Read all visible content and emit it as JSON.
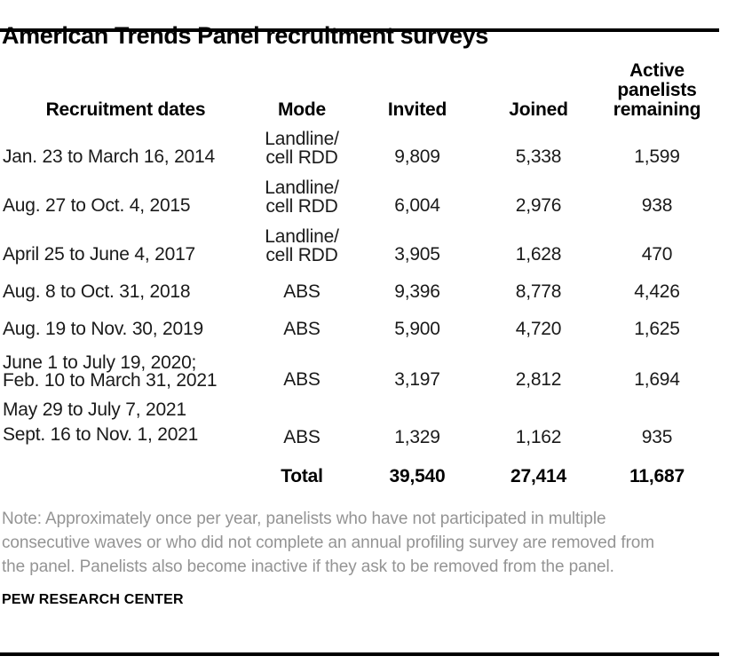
{
  "title": "American Trends Panel recruitment surveys",
  "table": {
    "columns": [
      {
        "id": "recruitment-dates",
        "lines": [
          "Recruitment dates"
        ]
      },
      {
        "id": "mode",
        "lines": [
          "Mode"
        ]
      },
      {
        "id": "invited",
        "lines": [
          "Invited"
        ]
      },
      {
        "id": "joined",
        "lines": [
          "Joined"
        ]
      },
      {
        "id": "active-panelists-remaining",
        "lines": [
          "Active",
          "panelists",
          "remaining"
        ]
      }
    ],
    "rows": [
      {
        "date_lines": [
          "Jan. 23 to March 16, 2014"
        ],
        "compact_dates": false,
        "mode_lines": [
          "Landline/",
          "cell RDD"
        ],
        "invited": "9,809",
        "joined": "5,338",
        "active_remaining": "1,599"
      },
      {
        "date_lines": [
          "Aug. 27 to Oct. 4, 2015"
        ],
        "compact_dates": false,
        "mode_lines": [
          "Landline/",
          "cell RDD"
        ],
        "invited": "6,004",
        "joined": "2,976",
        "active_remaining": "938"
      },
      {
        "date_lines": [
          "April 25 to June 4, 2017"
        ],
        "compact_dates": false,
        "mode_lines": [
          "Landline/",
          "cell RDD"
        ],
        "invited": "3,905",
        "joined": "1,628",
        "active_remaining": "470"
      },
      {
        "date_lines": [
          "Aug. 8 to Oct. 31, 2018"
        ],
        "compact_dates": false,
        "mode_lines": [
          "ABS"
        ],
        "invited": "9,396",
        "joined": "8,778",
        "active_remaining": "4,426"
      },
      {
        "date_lines": [
          "Aug. 19 to Nov. 30, 2019"
        ],
        "compact_dates": false,
        "mode_lines": [
          "ABS"
        ],
        "invited": "5,900",
        "joined": "4,720",
        "active_remaining": "1,625"
      },
      {
        "date_lines": [
          "June 1 to July 19, 2020;",
          "Feb. 10 to March 31, 2021"
        ],
        "compact_dates": true,
        "mode_lines": [
          "ABS"
        ],
        "invited": "3,197",
        "joined": "2,812",
        "active_remaining": "1,694"
      },
      {
        "date_lines": [
          "May 29 to July 7, 2021",
          "Sept. 16 to Nov. 1, 2021"
        ],
        "compact_dates": false,
        "mode_lines": [
          "ABS"
        ],
        "invited": "1,329",
        "joined": "1,162",
        "active_remaining": "935"
      }
    ],
    "total": {
      "label": "Total",
      "invited": "39,540",
      "joined": "27,414",
      "active_remaining": "11,687"
    }
  },
  "note_lines": [
    "Note: Approximately once per year, panelists who have not participated in multiple",
    "consecutive waves or who did not complete an annual profiling survey are removed from",
    "the panel. Panelists also become inactive if they ask to be removed from the panel."
  ],
  "source": "PEW RESEARCH CENTER",
  "colors": {
    "text": "#000000",
    "note_gray": "#949494",
    "rule": "#000000",
    "background": "#ffffff"
  },
  "chart_data": {
    "type": "table",
    "title": "American Trends Panel recruitment surveys",
    "columns": [
      "Recruitment dates",
      "Mode",
      "Invited",
      "Joined",
      "Active panelists remaining"
    ],
    "rows": [
      [
        "Jan. 23 to March 16, 2014",
        "Landline/cell RDD",
        9809,
        5338,
        1599
      ],
      [
        "Aug. 27 to Oct. 4, 2015",
        "Landline/cell RDD",
        6004,
        2976,
        938
      ],
      [
        "April 25 to June 4, 2017",
        "Landline/cell RDD",
        3905,
        1628,
        470
      ],
      [
        "Aug. 8 to Oct. 31, 2018",
        "ABS",
        9396,
        8778,
        4426
      ],
      [
        "Aug. 19 to Nov. 30, 2019",
        "ABS",
        5900,
        4720,
        1625
      ],
      [
        "June 1 to July 19, 2020; Feb. 10 to March 31, 2021",
        "ABS",
        3197,
        2812,
        1694
      ],
      [
        "May 29 to July 7, 2021; Sept. 16 to Nov. 1, 2021",
        "ABS",
        1329,
        1162,
        935
      ]
    ],
    "total_row": [
      "",
      "Total",
      39540,
      27414,
      11687
    ],
    "note": "Note: Approximately once per year, panelists who have not participated in multiple consecutive waves or who did not complete an annual profiling survey are removed from the panel. Panelists also become inactive if they ask to be removed from the panel.",
    "source": "PEW RESEARCH CENTER"
  }
}
